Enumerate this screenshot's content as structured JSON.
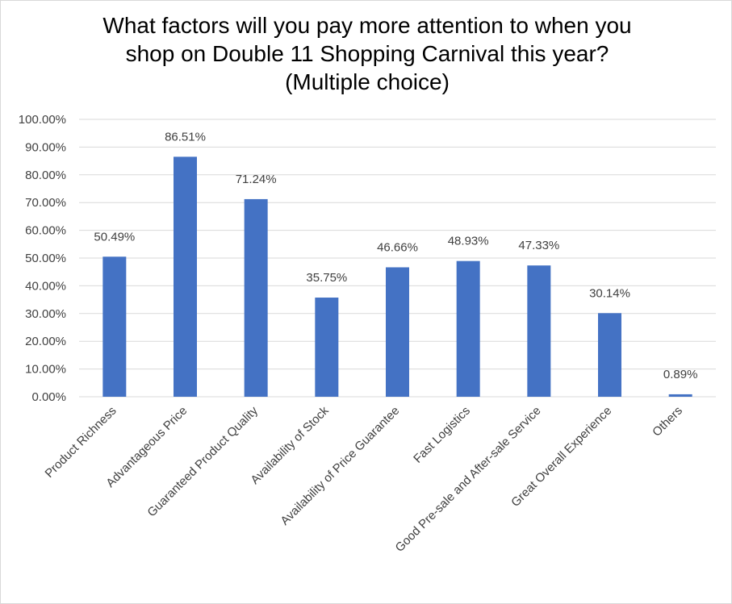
{
  "chart_data": {
    "type": "bar",
    "title_lines": [
      "What factors will you pay more attention to when you",
      "shop on Double 11 Shopping Carnival this year?",
      "(Multiple choice)"
    ],
    "categories": [
      "Product Richness",
      "Advantageous Price",
      "Guaranteed Product Quality",
      "Availability of Stock",
      "Availability of Price Guarantee",
      "Fast Logistics",
      "Good Pre-sale and After-sale Service",
      "Great Overall Experience",
      "Others"
    ],
    "values": [
      50.49,
      86.51,
      71.24,
      35.75,
      46.66,
      48.93,
      47.33,
      30.14,
      0.89
    ],
    "data_labels": [
      "50.49%",
      "86.51%",
      "71.24%",
      "35.75%",
      "46.66%",
      "48.93%",
      "47.33%",
      "30.14%",
      "0.89%"
    ],
    "y_ticks": [
      "0.00%",
      "10.00%",
      "20.00%",
      "30.00%",
      "40.00%",
      "50.00%",
      "60.00%",
      "70.00%",
      "80.00%",
      "90.00%",
      "100.00%"
    ],
    "ylim": [
      0,
      100
    ],
    "grid": true,
    "legend": "none",
    "colors": {
      "bar": "#4472c4",
      "grid": "#d9d9d9",
      "text": "#404040"
    }
  }
}
